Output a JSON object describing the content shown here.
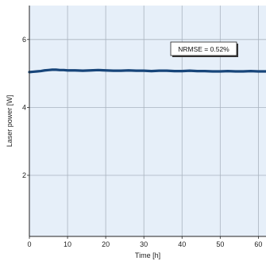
{
  "chart_data": {
    "type": "line",
    "xlabel": "Time [h]",
    "ylabel": "Laser power [W]",
    "xlim": [
      0,
      62
    ],
    "ylim": [
      0.2,
      7.0
    ],
    "xticks": [
      0,
      10,
      20,
      30,
      40,
      50,
      60
    ],
    "yticks": [
      2,
      4,
      6
    ],
    "grid": true,
    "annotation": "NRMSE = 0.52%",
    "series": [
      {
        "x": [
          0,
          1,
          2,
          3,
          4,
          5,
          6,
          7,
          8,
          9,
          10,
          12,
          14,
          16,
          18,
          20,
          22,
          24,
          26,
          28,
          30,
          32,
          34,
          36,
          38,
          40,
          42,
          44,
          46,
          48,
          50,
          52,
          54,
          56,
          58,
          60,
          62
        ],
        "y": [
          5.04,
          5.05,
          5.06,
          5.07,
          5.09,
          5.1,
          5.11,
          5.11,
          5.1,
          5.1,
          5.09,
          5.09,
          5.08,
          5.09,
          5.1,
          5.09,
          5.08,
          5.08,
          5.09,
          5.08,
          5.08,
          5.07,
          5.08,
          5.08,
          5.07,
          5.07,
          5.08,
          5.07,
          5.07,
          5.06,
          5.06,
          5.07,
          5.06,
          5.06,
          5.07,
          5.06,
          5.06
        ],
        "color": "#17457a"
      }
    ],
    "colors": {
      "plot_background": "#e6eff9",
      "grid": "#a9b3bf",
      "line": "#17457a"
    }
  }
}
